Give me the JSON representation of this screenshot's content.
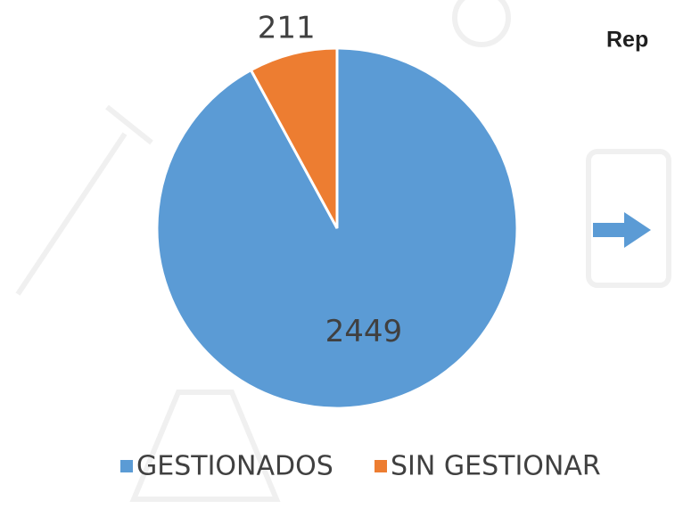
{
  "slide": {
    "heading": "Rep"
  },
  "chart_data": {
    "type": "pie",
    "categories": [
      "GESTIONADOS",
      "SIN GESTIONAR"
    ],
    "values": [
      2449,
      211
    ],
    "colors": [
      "#5b9bd5",
      "#ed7d31"
    ],
    "start_angle": 0,
    "direction": "clockwise",
    "legend": "bottom"
  }
}
